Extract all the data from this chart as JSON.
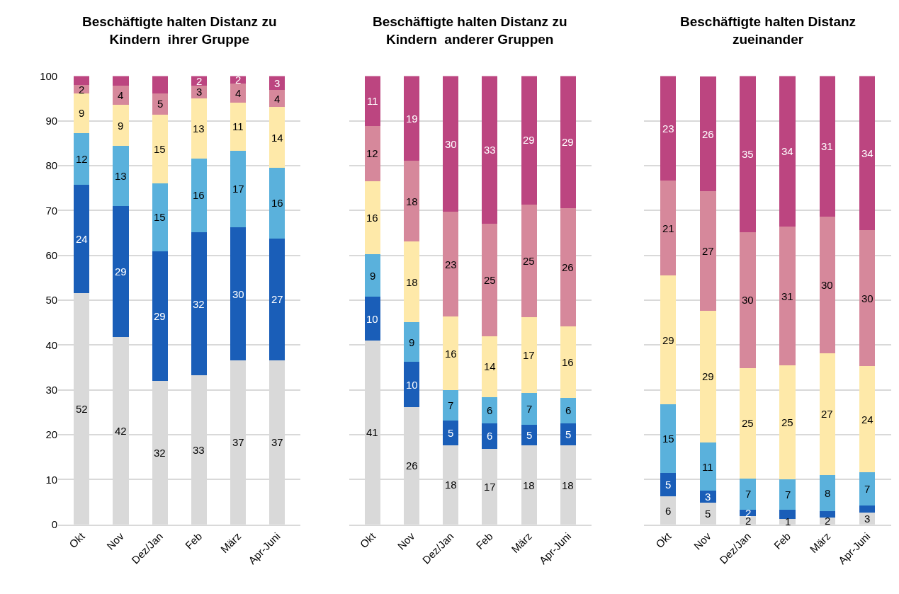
{
  "chart_data": [
    {
      "type": "bar",
      "stacked": true,
      "title": "Beschäftigte halten Distanz zu Kindern  ihrer Gruppe",
      "categories": [
        "Okt",
        "Nov",
        "Dez/Jan",
        "Feb",
        "März",
        "Apr-Juni"
      ],
      "ylim": [
        0,
        100
      ],
      "yticks": [
        0,
        10,
        20,
        30,
        40,
        50,
        60,
        70,
        80,
        90,
        100
      ],
      "grid": "y",
      "series": [
        {
          "color": "#d9d9d9",
          "values": [
            51.6,
            41.8,
            32.0,
            33.2,
            36.6,
            36.6
          ],
          "value_labels": [
            "52",
            "42",
            "32",
            "33",
            "37",
            "37"
          ]
        },
        {
          "color": "#1a5eb8",
          "values": [
            24.1,
            29.2,
            28.9,
            32.0,
            29.6,
            27.2
          ],
          "value_labels": [
            "24",
            "29",
            "29",
            "32",
            "30",
            "27"
          ]
        },
        {
          "color": "#5ab1dc",
          "values": [
            11.6,
            13.4,
            15.2,
            16.4,
            17.2,
            15.7
          ],
          "value_labels": [
            "12",
            "13",
            "15",
            "16",
            "17",
            "16"
          ]
        },
        {
          "color": "#fee9a9",
          "values": [
            8.8,
            9.2,
            15.3,
            13.4,
            10.7,
            13.6
          ],
          "value_labels": [
            "9",
            "9",
            "15",
            "13",
            "11",
            "14"
          ]
        },
        {
          "color": "#d6889b",
          "values": [
            1.9,
            4.3,
            4.7,
            2.9,
            4.3,
            3.8
          ],
          "value_labels": [
            "2",
            "4",
            "5",
            "3",
            "4",
            "4"
          ]
        },
        {
          "color": "#bc4580",
          "values": [
            2.0,
            2.1,
            3.9,
            2.1,
            1.6,
            3.1
          ],
          "value_labels": [
            null,
            null,
            null,
            "2",
            "2",
            "3"
          ]
        }
      ]
    },
    {
      "type": "bar",
      "stacked": true,
      "title": "Beschäftigte halten Distanz zu Kindern  anderer Gruppen",
      "categories": [
        "Okt",
        "Nov",
        "Dez/Jan",
        "Feb",
        "März",
        "Apr-Juni"
      ],
      "ylim": [
        0,
        100
      ],
      "yticks": [
        0,
        10,
        20,
        30,
        40,
        50,
        60,
        70,
        80,
        90,
        100
      ],
      "grid": "y",
      "tick_labels": "x",
      "series": [
        {
          "color": "#d9d9d9",
          "values": [
            41.0,
            26.2,
            17.7,
            16.9,
            17.6,
            17.6
          ],
          "value_labels": [
            "41",
            "26",
            "18",
            "17",
            "18",
            "18"
          ]
        },
        {
          "color": "#1a5eb8",
          "values": [
            9.8,
            10.0,
            5.4,
            5.6,
            4.6,
            5.0
          ],
          "value_labels": [
            "10",
            "10",
            "5",
            "6",
            "5",
            "5"
          ]
        },
        {
          "color": "#5ab1dc",
          "values": [
            9.4,
            8.9,
            6.8,
            5.9,
            7.2,
            5.7
          ],
          "value_labels": [
            "9",
            "9",
            "7",
            "6",
            "7",
            "6"
          ]
        },
        {
          "color": "#fee9a9",
          "values": [
            16.3,
            18.0,
            16.4,
            13.6,
            16.8,
            15.9
          ],
          "value_labels": [
            "16",
            "18",
            "16",
            "14",
            "17",
            "16"
          ]
        },
        {
          "color": "#d6889b",
          "values": [
            12.4,
            18.0,
            23.4,
            25.1,
            25.2,
            26.4
          ],
          "value_labels": [
            "12",
            "18",
            "23",
            "25",
            "25",
            "26"
          ]
        },
        {
          "color": "#bc4580",
          "values": [
            11.1,
            18.9,
            30.3,
            32.9,
            28.6,
            29.4
          ],
          "value_labels": [
            "11",
            "19",
            "30",
            "33",
            "29",
            "29"
          ]
        }
      ]
    },
    {
      "type": "bar",
      "stacked": true,
      "title": "Beschäftigte halten Distanz zueinander",
      "categories": [
        "Okt",
        "Nov",
        "Dez/Jan",
        "Feb",
        "März",
        "Apr-Juni"
      ],
      "ylim": [
        0,
        100
      ],
      "yticks": [
        0,
        10,
        20,
        30,
        40,
        50,
        60,
        70,
        80,
        90,
        100
      ],
      "grid": "y",
      "tick_labels": "x",
      "series": [
        {
          "color": "#d9d9d9",
          "values": [
            6.2,
            4.8,
            1.8,
            1.3,
            1.6,
            2.6
          ],
          "value_labels": [
            "6",
            "5",
            "2",
            "1",
            "2",
            "3"
          ]
        },
        {
          "color": "#1a5eb8",
          "values": [
            5.3,
            2.7,
            1.5,
            1.9,
            1.4,
            1.6
          ],
          "value_labels": [
            "5",
            "3",
            "2",
            null,
            null,
            null
          ]
        },
        {
          "color": "#5ab1dc",
          "values": [
            15.3,
            10.8,
            7.0,
            6.9,
            8.0,
            7.4
          ],
          "value_labels": [
            "15",
            "11",
            "7",
            "7",
            "8",
            "7"
          ]
        },
        {
          "color": "#fee9a9",
          "values": [
            28.7,
            29.4,
            24.6,
            25.4,
            27.2,
            23.7
          ],
          "value_labels": [
            "29",
            "29",
            "25",
            "25",
            "27",
            "24"
          ]
        },
        {
          "color": "#d6889b",
          "values": [
            21.2,
            26.6,
            30.3,
            30.9,
            30.4,
            30.3
          ],
          "value_labels": [
            "21",
            "27",
            "30",
            "31",
            "30",
            "30"
          ]
        },
        {
          "color": "#bc4580",
          "values": [
            23.3,
            25.6,
            34.8,
            33.6,
            31.4,
            34.4
          ],
          "value_labels": [
            "23",
            "26",
            "35",
            "34",
            "31",
            "34"
          ]
        }
      ]
    }
  ]
}
